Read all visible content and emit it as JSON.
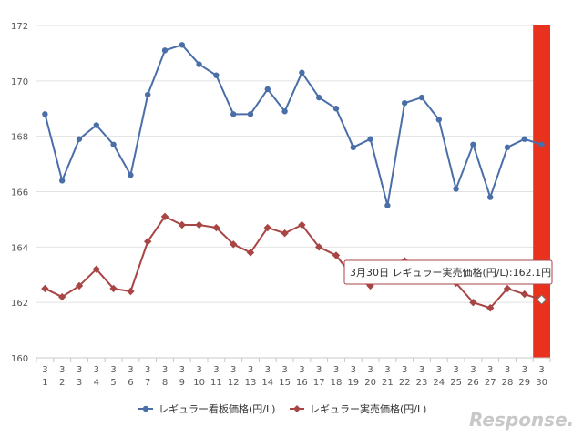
{
  "chart_data": {
    "type": "line",
    "title": "",
    "xlabel": "",
    "ylabel": "",
    "ylim": [
      160,
      172
    ],
    "yticks": [
      160,
      162,
      164,
      166,
      168,
      170,
      172
    ],
    "x_month_labels": [
      "3",
      "3",
      "3",
      "3",
      "3",
      "3",
      "3",
      "3",
      "3",
      "3",
      "3",
      "3",
      "3",
      "3",
      "3",
      "3",
      "3",
      "3",
      "3",
      "3",
      "3",
      "3",
      "3",
      "3",
      "3",
      "3",
      "3",
      "3",
      "3",
      "3"
    ],
    "categories": [
      "1",
      "2",
      "3",
      "4",
      "5",
      "6",
      "7",
      "8",
      "9",
      "10",
      "11",
      "12",
      "13",
      "14",
      "15",
      "16",
      "17",
      "18",
      "19",
      "20",
      "21",
      "22",
      "23",
      "24",
      "25",
      "26",
      "27",
      "28",
      "29",
      "30"
    ],
    "grid": "horizontal",
    "legend_position": "bottom",
    "series": [
      {
        "name": "レギュラー看板価格(円/L)",
        "color": "#4a6ea8",
        "marker": "circle",
        "values": [
          168.8,
          166.4,
          167.9,
          168.4,
          167.7,
          166.6,
          169.5,
          171.1,
          171.3,
          170.6,
          170.2,
          168.8,
          168.8,
          169.7,
          168.9,
          170.3,
          169.4,
          169.0,
          167.6,
          167.9,
          165.5,
          169.2,
          169.4,
          168.6,
          166.1,
          167.7,
          165.8,
          167.6,
          167.9,
          167.7
        ]
      },
      {
        "name": "レギュラー実売価格(円/L)",
        "color": "#a84545",
        "marker": "diamond",
        "values": [
          162.5,
          162.2,
          162.6,
          163.2,
          162.5,
          162.4,
          164.2,
          165.1,
          164.8,
          164.8,
          164.7,
          164.1,
          163.8,
          164.7,
          164.5,
          164.8,
          164.0,
          163.7,
          162.9,
          162.6,
          163.0,
          163.5,
          163.2,
          163.3,
          162.7,
          162.0,
          161.8,
          162.5,
          162.3,
          162.1
        ]
      }
    ],
    "highlight": {
      "index": 29,
      "color": "#e8321e"
    },
    "tooltip": {
      "text": "3月30日 レギュラー実売価格(円/L):162.1円"
    }
  },
  "watermark": {
    "text": "Response."
  }
}
